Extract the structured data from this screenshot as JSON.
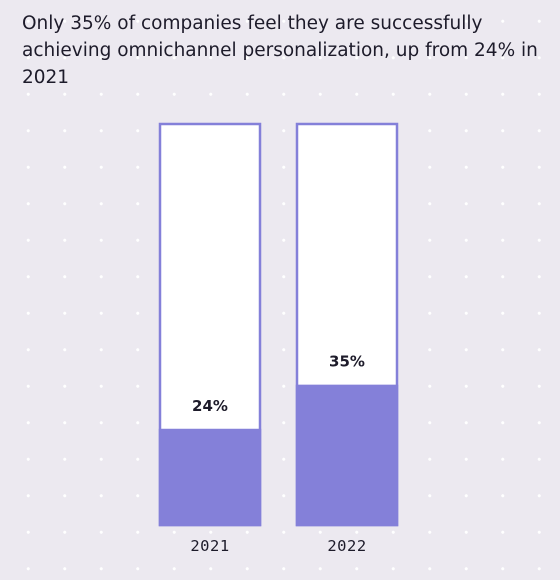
{
  "chart_data": {
    "type": "bar",
    "title": "Only 35% of companies feel they are successfully achieving omnichannel personalization, up from 24% in 2021",
    "categories": [
      "2021",
      "2022"
    ],
    "values": [
      24,
      35
    ],
    "value_labels": [
      "24%",
      "35%"
    ],
    "ylim": [
      0,
      100
    ],
    "grid": false,
    "colors": {
      "fill": "#8480d9",
      "outline": "#8480d9",
      "empty": "#ffffff",
      "background": "#ece9f0"
    }
  }
}
